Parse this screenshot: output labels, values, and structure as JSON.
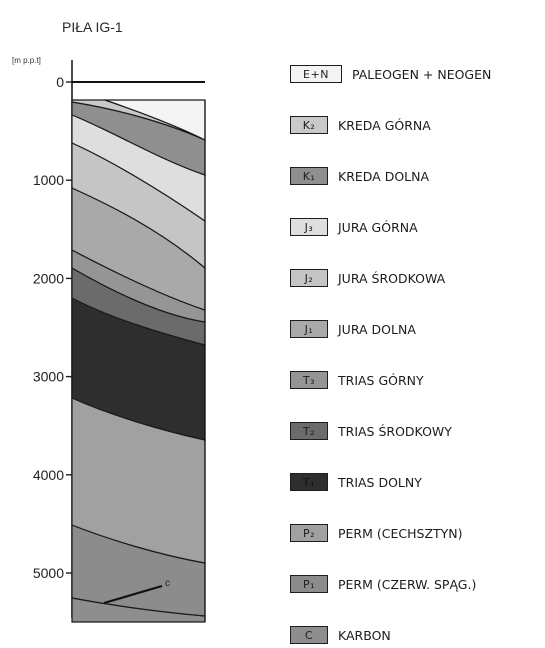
{
  "title": "PIŁA IG-1",
  "axis": {
    "unit_label": "[m p.p.t]",
    "ticks": [
      {
        "value": 0,
        "label": "0"
      },
      {
        "value": 1000,
        "label": "1000"
      },
      {
        "value": 2000,
        "label": "2000"
      },
      {
        "value": 3000,
        "label": "3000"
      },
      {
        "value": 4000,
        "label": "4000"
      },
      {
        "value": 5000,
        "label": "5000"
      }
    ]
  },
  "colors": {
    "E+N": "#f4f4f4",
    "K2": "#c9c9c9",
    "K1": "#8f8f8f",
    "J3": "#dedede",
    "J2": "#c5c5c5",
    "J1": "#a9a9a9",
    "T3": "#959595",
    "T2": "#6b6b6b",
    "T1": "#2e2e2e",
    "P2": "#a1a1a1",
    "P1": "#8c8c8c",
    "C": "#8e8e8e"
  },
  "section_label": "c",
  "legend": [
    {
      "key": "E+N",
      "code": "E+N",
      "label": "PALEOGEN + NEOGEN"
    },
    {
      "key": "K2",
      "code": "K₂",
      "label": "KREDA GÓRNA"
    },
    {
      "key": "K1",
      "code": "K₁",
      "label": "KREDA DOLNA"
    },
    {
      "key": "J3",
      "code": "J₃",
      "label": "JURA GÓRNA"
    },
    {
      "key": "J2",
      "code": "J₂",
      "label": "JURA ŚRODKOWA"
    },
    {
      "key": "J1",
      "code": "J₁",
      "label": "JURA DOLNA"
    },
    {
      "key": "T3",
      "code": "T₃",
      "label": "TRIAS GÓRNY"
    },
    {
      "key": "T2",
      "code": "T₂",
      "label": "TRIAS ŚRODKOWY"
    },
    {
      "key": "T1",
      "code": "T₁",
      "label": "TRIAS DOLNY"
    },
    {
      "key": "P2",
      "code": "P₂",
      "label": "PERM (CECHSZTYN)"
    },
    {
      "key": "P1",
      "code": "P₁",
      "label": "PERM (CZERW. SPĄG.)"
    },
    {
      "key": "C",
      "code": "C",
      "label": "KARBON"
    }
  ]
}
